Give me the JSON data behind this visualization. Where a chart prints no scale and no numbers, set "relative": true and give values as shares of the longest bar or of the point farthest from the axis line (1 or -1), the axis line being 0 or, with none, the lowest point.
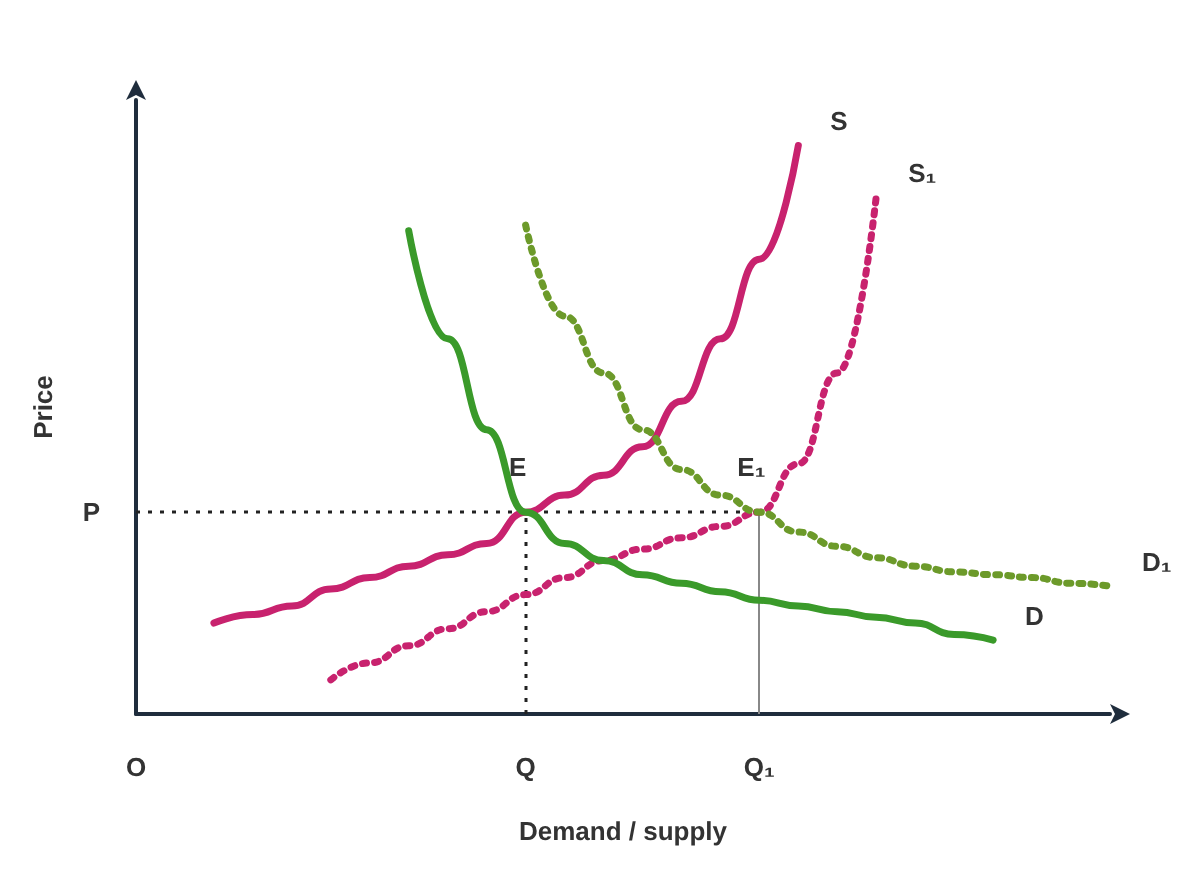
{
  "chart_data": {
    "type": "line",
    "relative": true,
    "xlabel": "Demand / supply",
    "ylabel": "Price",
    "categories": [
      "O",
      null,
      null,
      null,
      null,
      null,
      null,
      null,
      null,
      null,
      "Q",
      null,
      null,
      null,
      null,
      null,
      "Q₁",
      null,
      null,
      null,
      null,
      null,
      null,
      null,
      null,
      null
    ],
    "marker": "none",
    "legend": false,
    "grid": false,
    "series": [
      {
        "name": "S",
        "color": "#c8226e",
        "line_style": "solid",
        "values": [
          null,
          null,
          0.16,
          0.175,
          0.19,
          0.22,
          0.24,
          0.26,
          0.28,
          0.3,
          0.355,
          0.385,
          0.42,
          0.47,
          0.55,
          0.66,
          0.8,
          1,
          null,
          null,
          null,
          null,
          null,
          null,
          null,
          null
        ]
      },
      {
        "name": "S₁",
        "color": "#c8226e",
        "line_style": "dotted",
        "values": [
          null,
          null,
          null,
          null,
          null,
          0.06,
          0.09,
          0.12,
          0.15,
          0.18,
          0.21,
          0.24,
          0.27,
          0.29,
          0.31,
          0.33,
          0.355,
          0.44,
          0.6,
          0.91,
          null,
          null,
          null,
          null,
          null,
          null
        ]
      },
      {
        "name": "D",
        "color": "#3a9a2a",
        "line_style": "solid",
        "values": [
          null,
          null,
          null,
          null,
          null,
          null,
          null,
          0.85,
          0.66,
          0.5,
          0.355,
          0.3,
          0.27,
          0.245,
          0.23,
          0.215,
          0.2,
          0.19,
          0.18,
          0.17,
          0.16,
          0.14,
          0.13,
          null,
          null,
          null
        ]
      },
      {
        "name": "D₁",
        "color": "#6c9a2a",
        "line_style": "dotted",
        "values": [
          null,
          null,
          null,
          null,
          null,
          null,
          null,
          null,
          null,
          null,
          0.86,
          0.7,
          0.6,
          0.5,
          0.43,
          0.385,
          0.355,
          0.32,
          0.295,
          0.275,
          0.26,
          0.25,
          0.245,
          0.24,
          0.23,
          0.225
        ]
      }
    ],
    "ref_lines": [
      {
        "axis": "y",
        "value": 0.355,
        "label": "P",
        "line_style": "dotted"
      },
      {
        "axis": "x",
        "value": "Q",
        "line_style": "dotted"
      },
      {
        "axis": "x",
        "value": "Q₁",
        "line_style": "solid"
      }
    ],
    "annotations": [
      {
        "text": "E",
        "x": "Q",
        "y": 0.355
      },
      {
        "text": "E₁",
        "x": "Q₁",
        "y": 0.355
      }
    ]
  }
}
